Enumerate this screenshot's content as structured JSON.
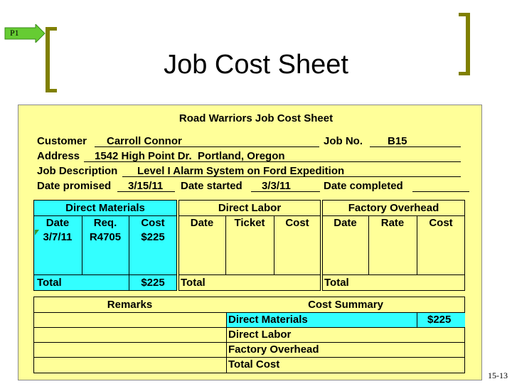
{
  "slide": {
    "badge": "P1",
    "title": "Job Cost Sheet",
    "page_number": "15-13"
  },
  "sheet": {
    "heading": "Road Warriors Job Cost Sheet",
    "customer_label": "Customer",
    "customer": "Carroll Connor",
    "job_no_label": "Job No.",
    "job_no": "B15",
    "address_label": "Address",
    "address": "1542 High Point Dr.  Portland, Oregon",
    "job_description_label": "Job Description",
    "job_description": "Level I Alarm System on Ford Expedition",
    "date_promised_label": "Date promised",
    "date_promised": "3/15/11",
    "date_started_label": "Date started",
    "date_started": "3/3/11",
    "date_completed_label": "Date completed",
    "date_completed": ""
  },
  "direct_materials": {
    "header": "Direct Materials",
    "columns": [
      "Date",
      "Req.",
      "Cost"
    ],
    "row": {
      "date": "3/7/11",
      "req": "R4705",
      "cost": "$225"
    },
    "total_label": "Total",
    "total": "$225"
  },
  "direct_labor": {
    "header": "Direct Labor",
    "columns": [
      "Date",
      "Ticket",
      "Cost"
    ],
    "total_label": "Total"
  },
  "factory_overhead": {
    "header": "Factory Overhead",
    "columns": [
      "Date",
      "Rate",
      "Cost"
    ],
    "total_label": "Total"
  },
  "remarks": {
    "header": "Remarks"
  },
  "cost_summary": {
    "header": "Cost Summary",
    "rows": [
      {
        "label": "Direct Materials",
        "value": "$225"
      },
      {
        "label": "Direct Labor",
        "value": ""
      },
      {
        "label": "Factory Overhead",
        "value": ""
      },
      {
        "label": "Total Cost",
        "value": ""
      }
    ]
  },
  "colors": {
    "sheet_bg": "#ffff99",
    "highlight": "#33ffff",
    "bracket": "#808000",
    "arrow": "#66cc33"
  }
}
